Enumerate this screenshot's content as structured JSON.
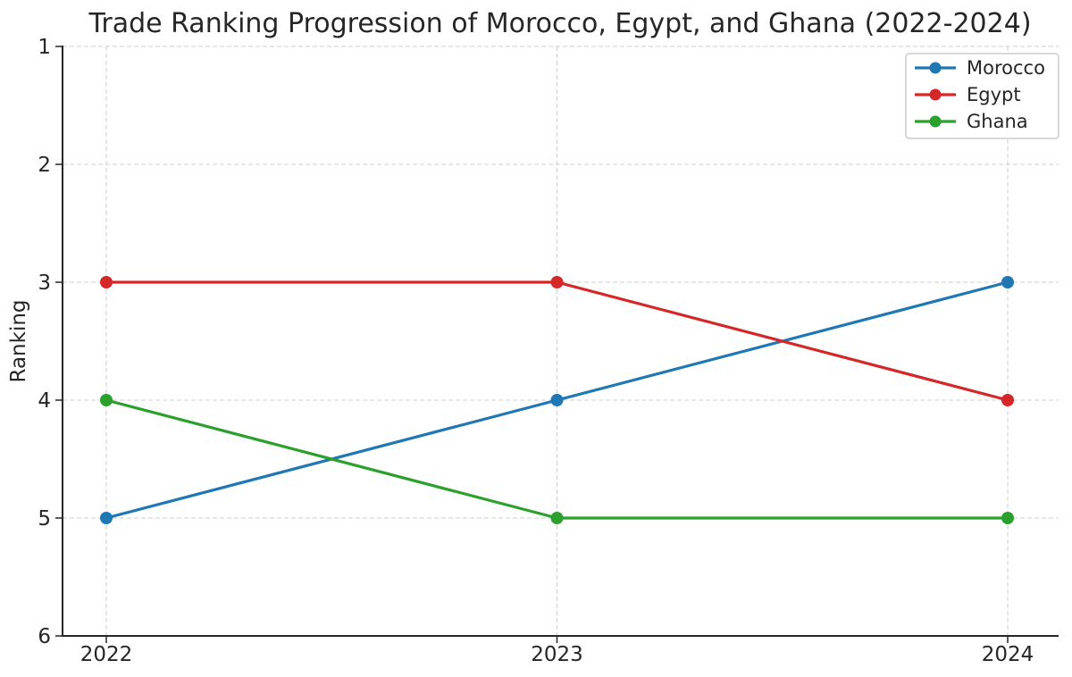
{
  "chart_data": {
    "type": "line",
    "title": "Trade Ranking Progression of Morocco, Egypt, and Ghana (2022-2024)",
    "xlabel": "",
    "ylabel": "Ranking",
    "categories": [
      "2022",
      "2023",
      "2024"
    ],
    "series": [
      {
        "name": "Morocco",
        "values": [
          5,
          4,
          3
        ],
        "color": "#1f77b4"
      },
      {
        "name": "Egypt",
        "values": [
          3,
          3,
          4
        ],
        "color": "#d62728"
      },
      {
        "name": "Ghana",
        "values": [
          4,
          5,
          5
        ],
        "color": "#2ca02c"
      }
    ],
    "y_axis": {
      "ticks": [
        1,
        2,
        3,
        4,
        5,
        6
      ],
      "min": 1,
      "max": 6,
      "inverted": true
    },
    "legend": {
      "position": "upper right",
      "entries": [
        "Morocco",
        "Egypt",
        "Ghana"
      ]
    },
    "grid": true,
    "style": {
      "grid_color": "#cccccc",
      "axis_color": "#262626",
      "text_color": "#262626",
      "background": "#ffffff"
    }
  }
}
